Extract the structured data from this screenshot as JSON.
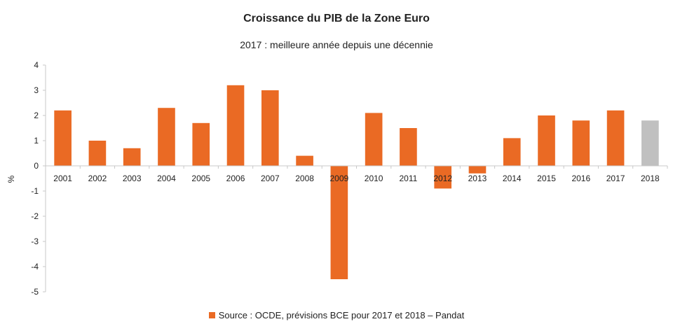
{
  "chart_data": {
    "type": "bar",
    "title": "Croissance du PIB de la Zone Euro",
    "subtitle": "2017 : meilleure année depuis une décennie",
    "ylabel": "%",
    "xlabel": "",
    "ylim": [
      -5,
      4
    ],
    "yticks": [
      4,
      3,
      2,
      1,
      0,
      -1,
      -2,
      -3,
      -4,
      -5
    ],
    "categories": [
      "2001",
      "2002",
      "2003",
      "2004",
      "2005",
      "2006",
      "2007",
      "2008",
      "2009",
      "2010",
      "2011",
      "2012",
      "2013",
      "2014",
      "2015",
      "2016",
      "2017",
      "2018"
    ],
    "series": [
      {
        "name": "Source : OCDE, prévisions BCE pour 2017 et 2018 – Pandat",
        "values": [
          2.2,
          1.0,
          0.7,
          2.3,
          1.7,
          3.2,
          3.0,
          0.4,
          -4.5,
          2.1,
          1.5,
          -0.9,
          -0.3,
          1.1,
          2.0,
          1.8,
          2.2,
          1.8
        ]
      }
    ],
    "highlight_category": "2018",
    "grid": false,
    "legend_position": "bottom",
    "colors": {
      "bar": "#ea6a24",
      "highlight": "#c0c0c0",
      "axis": "#c8c8c8",
      "text": "#222222"
    }
  }
}
